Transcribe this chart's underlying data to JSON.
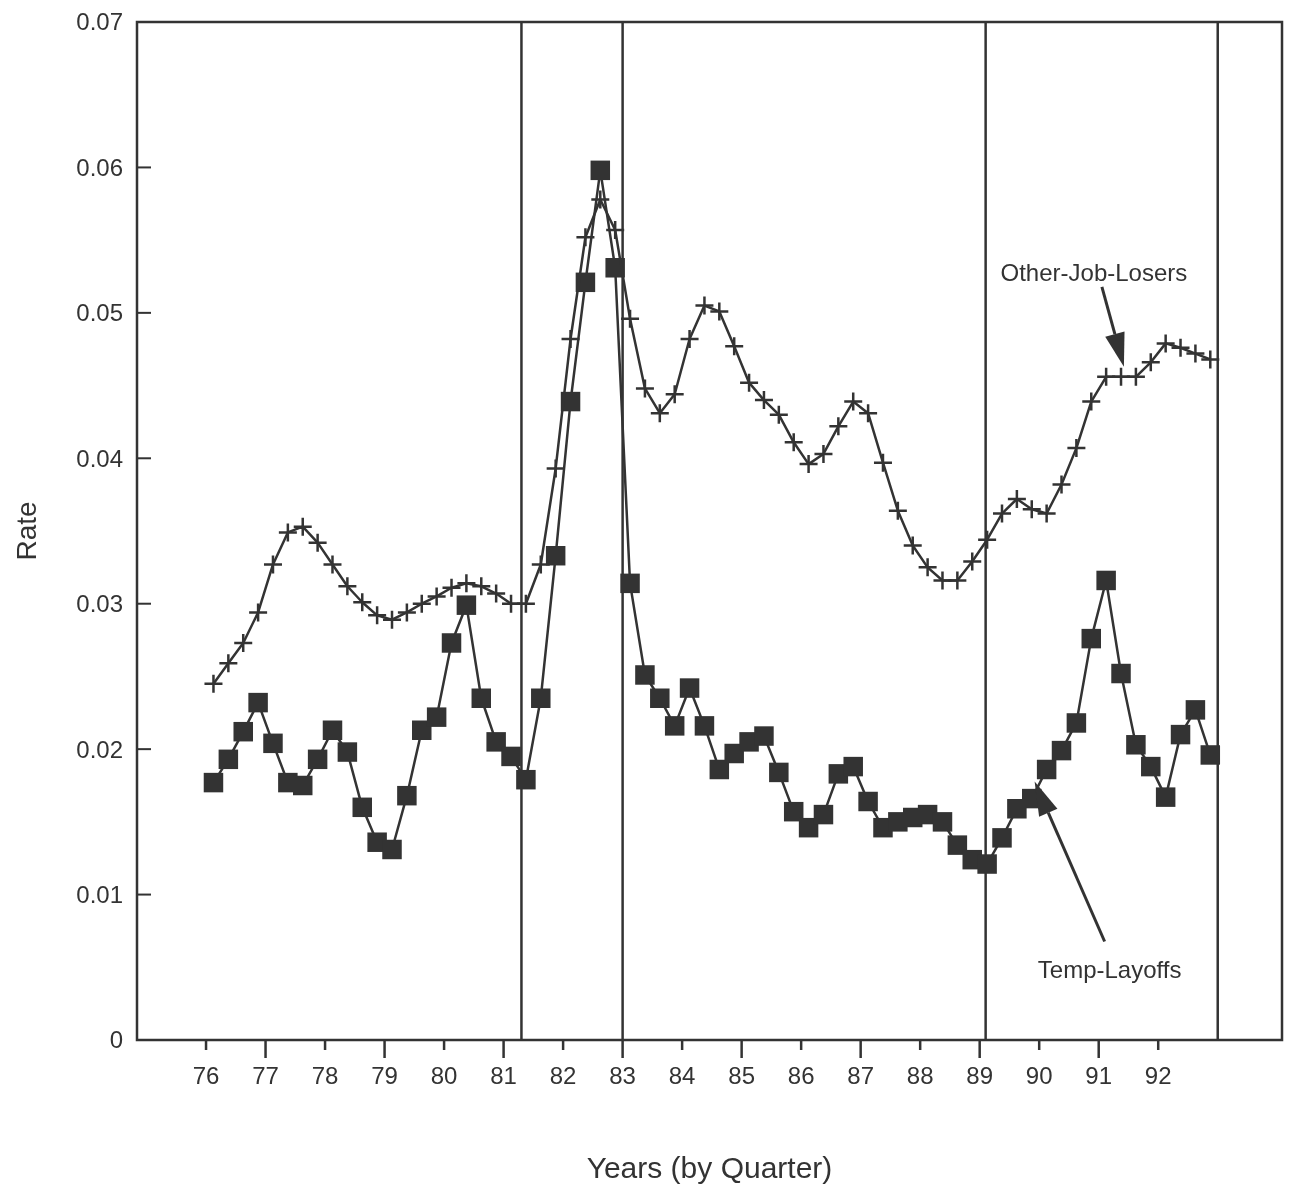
{
  "chart_data": {
    "type": "line",
    "xlabel": "Years (by Quarter)",
    "ylabel": "Rate",
    "xlim": [
      74.84,
      94.08
    ],
    "ylim": [
      0,
      0.07
    ],
    "xticks": [
      76,
      77,
      78,
      79,
      80,
      81,
      82,
      83,
      84,
      85,
      86,
      87,
      88,
      89,
      90,
      91,
      92
    ],
    "yticks": [
      0,
      0.01,
      0.02,
      0.03,
      0.04,
      0.05,
      0.06,
      0.07
    ],
    "x": [
      76.125,
      76.375,
      76.625,
      76.875,
      77.125,
      77.375,
      77.625,
      77.875,
      78.125,
      78.375,
      78.625,
      78.875,
      79.125,
      79.375,
      79.625,
      79.875,
      80.125,
      80.375,
      80.625,
      80.875,
      81.125,
      81.375,
      81.625,
      81.875,
      82.125,
      82.375,
      82.625,
      82.875,
      83.125,
      83.375,
      83.625,
      83.875,
      84.125,
      84.375,
      84.625,
      84.875,
      85.125,
      85.375,
      85.625,
      85.875,
      86.125,
      86.375,
      86.625,
      86.875,
      87.125,
      87.375,
      87.625,
      87.875,
      88.125,
      88.375,
      88.625,
      88.875,
      89.125,
      89.375,
      89.625,
      89.875,
      90.125,
      90.375,
      90.625,
      90.875,
      91.125,
      91.375,
      91.625,
      91.875,
      92.125,
      92.375,
      92.625,
      92.875
    ],
    "series": [
      {
        "name": "Temp-Layoffs",
        "color": "#333333",
        "marker": "square",
        "values": [
          0.0177,
          0.0193,
          0.0212,
          0.0232,
          0.0204,
          0.0177,
          0.0175,
          0.0193,
          0.0213,
          0.0198,
          0.016,
          0.0136,
          0.0131,
          0.0168,
          0.0213,
          0.0222,
          0.0273,
          0.0299,
          0.0235,
          0.0205,
          0.0195,
          0.0179,
          0.0235,
          0.0333,
          0.0439,
          0.0521,
          0.0598,
          0.0531,
          0.0314,
          0.0251,
          0.0235,
          0.0216,
          0.0242,
          0.0216,
          0.0186,
          0.0197,
          0.0205,
          0.0209,
          0.0184,
          0.0157,
          0.0146,
          0.0155,
          0.0183,
          0.0188,
          0.0164,
          0.0146,
          0.015,
          0.0153,
          0.0155,
          0.015,
          0.0134,
          0.0124,
          0.0121,
          0.0139,
          0.0159,
          0.0166,
          0.0186,
          0.0199,
          0.0218,
          0.0276,
          0.0316,
          0.0252,
          0.0203,
          0.0188,
          0.0167,
          0.021,
          0.0227,
          0.0196
        ]
      },
      {
        "name": "Other-Job-Losers",
        "color": "#333333",
        "marker": "cross",
        "values": [
          0.0245,
          0.0259,
          0.0273,
          0.0294,
          0.0327,
          0.0349,
          0.0353,
          0.0342,
          0.0327,
          0.0312,
          0.0301,
          0.0292,
          0.0289,
          0.0294,
          0.03,
          0.0305,
          0.0311,
          0.0314,
          0.0312,
          0.0307,
          0.03,
          0.03,
          0.0327,
          0.0393,
          0.0482,
          0.0552,
          0.0578,
          0.0557,
          0.0496,
          0.0448,
          0.0431,
          0.0444,
          0.0482,
          0.0505,
          0.0501,
          0.0477,
          0.0452,
          0.044,
          0.043,
          0.0411,
          0.0396,
          0.0403,
          0.0422,
          0.0439,
          0.0431,
          0.0397,
          0.0364,
          0.034,
          0.0325,
          0.0316,
          0.0316,
          0.0329,
          0.0344,
          0.0362,
          0.0372,
          0.0365,
          0.0362,
          0.0382,
          0.0407,
          0.0439,
          0.0456,
          0.0456,
          0.0456,
          0.0466,
          0.0479,
          0.0476,
          0.0472,
          0.0468
        ]
      }
    ],
    "ref_lines": [
      {
        "axis": "x",
        "value": 81.3,
        "color": "#333333"
      },
      {
        "axis": "x",
        "value": 83.0,
        "color": "#333333"
      },
      {
        "axis": "x",
        "value": 89.1,
        "color": "#333333"
      },
      {
        "axis": "x",
        "value": 93.0,
        "color": "#333333"
      }
    ],
    "line_style": "solid"
  }
}
